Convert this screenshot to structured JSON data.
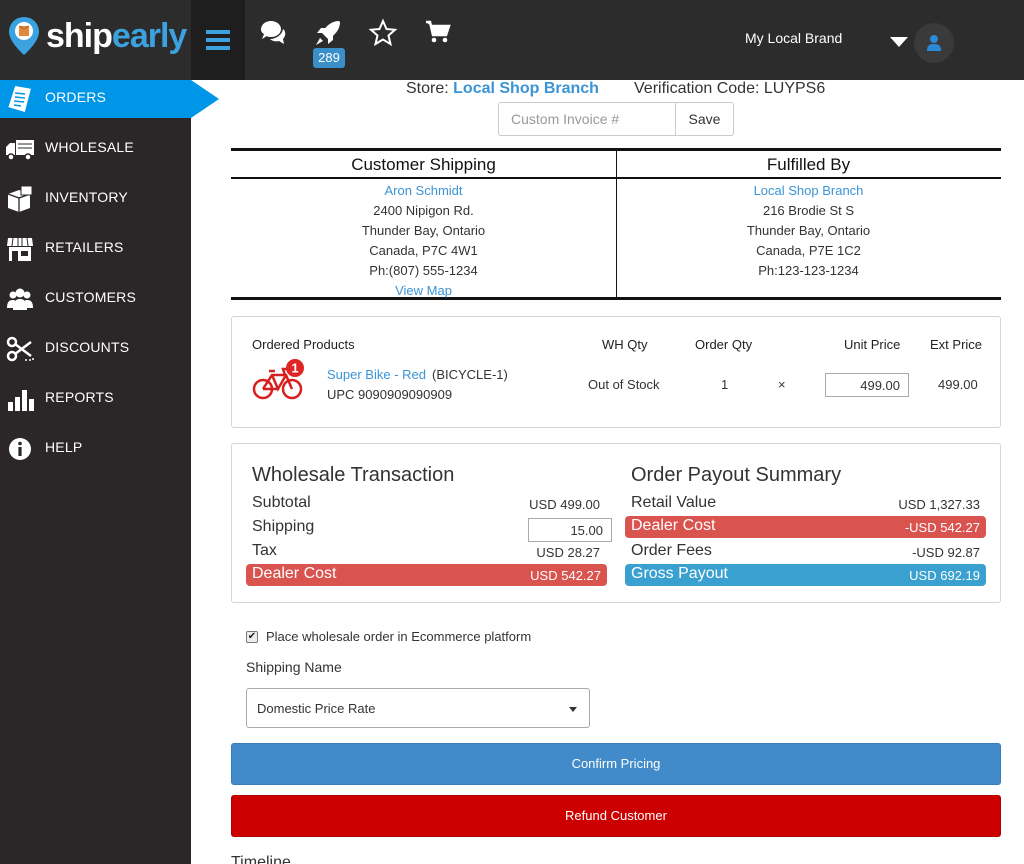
{
  "app": {
    "logo_left": "ship",
    "logo_right": "early",
    "notification_count": "289",
    "brand_name": "My Local Brand",
    "icons": [
      "menu-icon",
      "chat-icon",
      "rocket-icon",
      "star-icon",
      "cart-icon",
      "user-icon"
    ]
  },
  "sidebar": {
    "items": [
      {
        "label": "ORDERS",
        "icon": "orders-icon",
        "active": true
      },
      {
        "label": "WHOLESALE",
        "icon": "truck-icon"
      },
      {
        "label": "INVENTORY",
        "icon": "boxes-icon"
      },
      {
        "label": "RETAILERS",
        "icon": "store-icon"
      },
      {
        "label": "CUSTOMERS",
        "icon": "users-icon"
      },
      {
        "label": "DISCOUNTS",
        "icon": "scissors-icon"
      },
      {
        "label": "REPORTS",
        "icon": "bar-chart-icon"
      },
      {
        "label": "HELP",
        "icon": "info-icon"
      }
    ]
  },
  "order": {
    "store_label": "Store:",
    "store_name": "Local Shop Branch",
    "verification_label": "Verification Code:",
    "verification_code": "LUYPS6",
    "invoice_placeholder": "Custom Invoice #",
    "save_label": "Save"
  },
  "shipping": {
    "customer_heading": "Customer Shipping",
    "fulfilled_heading": "Fulfilled By",
    "customer": {
      "name": "Aron Schmidt",
      "street": "2400 Nipigon Rd.",
      "city": "Thunder Bay, Ontario",
      "country": "Canada, P7C 4W1",
      "phone": "Ph:(807) 555-1234",
      "map_link": "View Map"
    },
    "fulfiller": {
      "name": "Local Shop Branch",
      "street": "216 Brodie St S",
      "city": "Thunder Bay, Ontario",
      "country": "Canada, P7E 1C2",
      "phone": "Ph:123-123-1234"
    }
  },
  "products": {
    "headers": {
      "product": "Ordered Products",
      "wh_qty": "WH Qty",
      "order_qty": "Order Qty",
      "unit_price": "Unit Price",
      "ext_price": "Ext Price"
    },
    "items": [
      {
        "badge": "1",
        "name": "Super Bike - Red",
        "sku": "(BICYCLE-1)",
        "upc": "UPC 9090909090909",
        "wh_qty": "Out of Stock",
        "order_qty": "1",
        "times": "×",
        "unit_price": "499.00",
        "ext_price": "499.00"
      }
    ]
  },
  "wholesale": {
    "title": "Wholesale Transaction",
    "subtotal_label": "Subtotal",
    "subtotal_value": "USD 499.00",
    "shipping_label": "Shipping",
    "shipping_value": "15.00",
    "tax_label": "Tax",
    "tax_value": "USD 28.27",
    "dealer_cost_label": "Dealer Cost",
    "dealer_cost_value": "USD 542.27"
  },
  "payout": {
    "title": "Order Payout Summary",
    "retail_label": "Retail Value",
    "retail_value": "USD 1,327.33",
    "dealer_cost_label": "Dealer Cost",
    "dealer_cost_value": "-USD 542.27",
    "fees_label": "Order Fees",
    "fees_value": "-USD 92.87",
    "gross_label": "Gross Payout",
    "gross_value": "USD 692.19"
  },
  "form": {
    "checkbox_label": "Place wholesale order in Ecommerce platform",
    "shipping_name_label": "Shipping Name",
    "shipping_name_value": "Domestic Price Rate",
    "confirm_label": "Confirm Pricing",
    "refund_label": "Refund Customer",
    "timeline_label": "Timeline"
  },
  "colors": {
    "accent": "#0096e8",
    "link": "#3a94d6",
    "danger": "#d9534f",
    "info": "#39a0cf",
    "confirm": "#428bca",
    "refund": "#cc0000"
  }
}
